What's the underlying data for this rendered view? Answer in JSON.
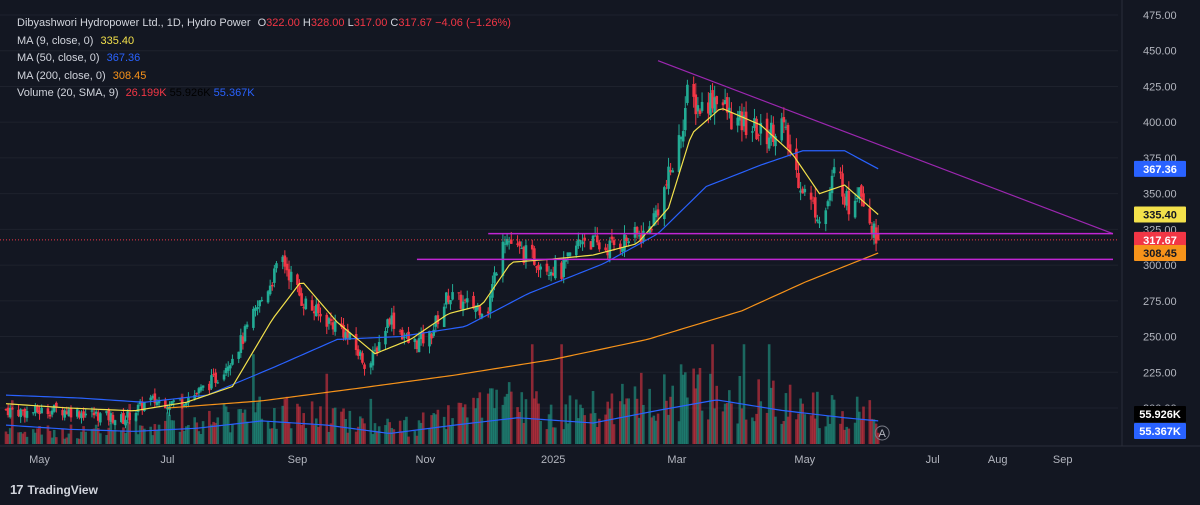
{
  "legend": {
    "title": "Dibyashwori Hydropower Ltd., 1D, Hydro Power",
    "o_label": "O",
    "o": "322.00",
    "h_label": "H",
    "h": "328.00",
    "l_label": "L",
    "l": "317.00",
    "c_label": "C",
    "c": "317.67",
    "change": "−4.06 (−1.26%)",
    "ma9_label": "MA (9, close, 0)",
    "ma9": "335.40",
    "ma50_label": "MA (50, close, 0)",
    "ma50": "367.36",
    "ma200_label": "MA (200, close, 0)",
    "ma200": "308.45",
    "vol_label": "Volume (20, SMA, 9)",
    "vol_1": "26.199K",
    "vol_2": "55.926K",
    "vol_3": "55.367K"
  },
  "branding": {
    "logo_text": "TradingView",
    "logo_mark": "17"
  },
  "colors": {
    "background": "#131722",
    "up": "#22ab94",
    "down": "#f23645",
    "ma9": "#f3e14b",
    "ma50": "#2962ff",
    "ma200": "#f7931a",
    "trendline": "#9c27b0",
    "volume_sma": "#2962ff"
  },
  "chart_data": {
    "type": "candlestick",
    "title": "Dibyashwori Hydropower Ltd., 1D, Hydro Power",
    "x_ticks": [
      "May",
      "Jul",
      "Sep",
      "Nov",
      "2025",
      "Mar",
      "May",
      "Jul",
      "Aug",
      "Sep"
    ],
    "y_ticks": [
      "475.00",
      "450.00",
      "425.00",
      "400.00",
      "375.00",
      "350.00",
      "325.00",
      "300.00",
      "275.00",
      "250.00",
      "225.00",
      "200.00"
    ],
    "y_range": [
      200,
      475
    ],
    "price_anchors": [
      [
        "2024-04-15",
        199
      ],
      [
        "2024-04-25",
        197
      ],
      [
        "2024-05-10",
        199
      ],
      [
        "2024-05-25",
        196
      ],
      [
        "2024-06-10",
        192
      ],
      [
        "2024-06-22",
        205
      ],
      [
        "2024-07-05",
        204
      ],
      [
        "2024-07-15",
        210
      ],
      [
        "2024-07-25",
        222
      ],
      [
        "2024-08-05",
        246
      ],
      [
        "2024-08-18",
        285
      ],
      [
        "2024-08-25",
        304
      ],
      [
        "2024-09-03",
        276
      ],
      [
        "2024-09-12",
        264
      ],
      [
        "2024-09-22",
        256
      ],
      [
        "2024-10-05",
        228
      ],
      [
        "2024-10-15",
        264
      ],
      [
        "2024-10-25",
        244
      ],
      [
        "2024-11-03",
        250
      ],
      [
        "2024-11-12",
        279
      ],
      [
        "2024-11-20",
        272
      ],
      [
        "2024-12-01",
        270
      ],
      [
        "2024-12-08",
        322
      ],
      [
        "2024-12-15",
        310
      ],
      [
        "2024-12-25",
        303
      ],
      [
        "2025-01-05",
        295
      ],
      [
        "2025-01-15",
        320
      ],
      [
        "2025-01-25",
        311
      ],
      [
        "2025-02-05",
        318
      ],
      [
        "2025-02-15",
        322
      ],
      [
        "2025-02-22",
        348
      ],
      [
        "2025-03-01",
        378
      ],
      [
        "2025-03-06",
        418
      ],
      [
        "2025-03-12",
        410
      ],
      [
        "2025-03-20",
        419
      ],
      [
        "2025-03-28",
        400
      ],
      [
        "2025-04-05",
        397
      ],
      [
        "2025-04-12",
        390
      ],
      [
        "2025-04-20",
        400
      ],
      [
        "2025-04-26",
        368
      ],
      [
        "2025-05-03",
        345
      ],
      [
        "2025-05-10",
        332
      ],
      [
        "2025-05-16",
        370
      ],
      [
        "2025-05-22",
        340
      ],
      [
        "2025-05-27",
        358
      ],
      [
        "2025-05-31",
        338
      ],
      [
        "2025-06-03",
        322
      ],
      [
        "2025-06-05",
        317.67
      ]
    ],
    "ma9_anchors": [
      [
        "2024-04-15",
        203
      ],
      [
        "2024-05-15",
        200
      ],
      [
        "2024-06-15",
        198
      ],
      [
        "2024-07-10",
        204
      ],
      [
        "2024-08-01",
        215
      ],
      [
        "2024-08-20",
        262
      ],
      [
        "2024-09-03",
        289
      ],
      [
        "2024-09-20",
        260
      ],
      [
        "2024-10-08",
        238
      ],
      [
        "2024-10-25",
        248
      ],
      [
        "2024-11-12",
        266
      ],
      [
        "2024-11-28",
        272
      ],
      [
        "2024-12-12",
        302
      ],
      [
        "2024-12-30",
        304
      ],
      [
        "2025-01-20",
        307
      ],
      [
        "2025-02-10",
        315
      ],
      [
        "2025-02-25",
        340
      ],
      [
        "2025-03-08",
        392
      ],
      [
        "2025-03-22",
        410
      ],
      [
        "2025-04-10",
        398
      ],
      [
        "2025-04-25",
        378
      ],
      [
        "2025-05-08",
        350
      ],
      [
        "2025-05-20",
        356
      ],
      [
        "2025-06-05",
        335.4
      ]
    ],
    "ma50_anchors": [
      [
        "2024-04-15",
        209
      ],
      [
        "2024-05-20",
        207
      ],
      [
        "2024-06-20",
        204
      ],
      [
        "2024-07-20",
        209
      ],
      [
        "2024-08-20",
        228
      ],
      [
        "2024-09-20",
        248
      ],
      [
        "2024-10-20",
        250
      ],
      [
        "2024-11-20",
        257
      ],
      [
        "2024-12-20",
        280
      ],
      [
        "2025-01-25",
        301
      ],
      [
        "2025-02-20",
        322
      ],
      [
        "2025-03-15",
        355
      ],
      [
        "2025-04-10",
        370
      ],
      [
        "2025-04-30",
        380
      ],
      [
        "2025-05-20",
        380
      ],
      [
        "2025-06-05",
        367.36
      ]
    ],
    "ma200_anchors": [
      [
        "2024-07-01",
        200
      ],
      [
        "2024-08-15",
        205
      ],
      [
        "2024-10-01",
        214
      ],
      [
        "2024-11-15",
        223
      ],
      [
        "2025-01-01",
        234
      ],
      [
        "2025-02-15",
        248
      ],
      [
        "2025-04-01",
        268
      ],
      [
        "2025-05-01",
        288
      ],
      [
        "2025-06-05",
        308.45
      ]
    ],
    "volume_anchors": [
      [
        "2024-04-15",
        0.15
      ],
      [
        "2024-05-15",
        0.12
      ],
      [
        "2024-06-20",
        0.2
      ],
      [
        "2024-07-20",
        0.28
      ],
      [
        "2024-08-20",
        0.35
      ],
      [
        "2024-09-20",
        0.3
      ],
      [
        "2024-10-20",
        0.18
      ],
      [
        "2024-11-15",
        0.3
      ],
      [
        "2024-12-10",
        0.45
      ],
      [
        "2025-01-15",
        0.35
      ],
      [
        "2025-02-20",
        0.55
      ],
      [
        "2025-03-15",
        0.6
      ],
      [
        "2025-04-15",
        0.45
      ],
      [
        "2025-05-15",
        0.4
      ],
      [
        "2025-06-05",
        0.3
      ]
    ],
    "vol_sma_anchors": [
      [
        "2024-04-15",
        0.18
      ],
      [
        "2024-05-15",
        0.14
      ],
      [
        "2024-06-15",
        0.12
      ],
      [
        "2024-07-15",
        0.15
      ],
      [
        "2024-08-15",
        0.22
      ],
      [
        "2024-09-15",
        0.18
      ],
      [
        "2024-10-15",
        0.1
      ],
      [
        "2024-11-15",
        0.18
      ],
      [
        "2024-12-15",
        0.25
      ],
      [
        "2025-01-20",
        0.2
      ],
      [
        "2025-02-20",
        0.32
      ],
      [
        "2025-03-20",
        0.42
      ],
      [
        "2025-04-20",
        0.32
      ],
      [
        "2025-05-20",
        0.25
      ],
      [
        "2025-06-05",
        0.22
      ]
    ],
    "trendline": [
      [
        "2025-02-20",
        443
      ],
      [
        "2025-09-25",
        322
      ]
    ],
    "horizontal_lines": [
      {
        "from": "2024-12-01",
        "to": "2025-09-25",
        "price": 322
      },
      {
        "from": "2024-10-28",
        "to": "2025-09-25",
        "price": 304
      }
    ],
    "current_price_line": 317.67,
    "price_badges": [
      {
        "price": 367.36,
        "text": "367.36",
        "bg": "#2962ff",
        "fg": "#ffffff"
      },
      {
        "price": 335.4,
        "text": "335.40",
        "bg": "#f3e14b",
        "fg": "#131722"
      },
      {
        "price": 317.67,
        "text": "317.67",
        "bg": "#f23645",
        "fg": "#ffffff"
      },
      {
        "price": 308.45,
        "text": "308.45",
        "bg": "#f7931a",
        "fg": "#131722"
      }
    ],
    "volume_badges": [
      {
        "text": "55.926K",
        "bg": "#000000",
        "fg": "#ffffff"
      },
      {
        "text": "55.367K",
        "bg": "#2962ff",
        "fg": "#ffffff"
      }
    ]
  }
}
